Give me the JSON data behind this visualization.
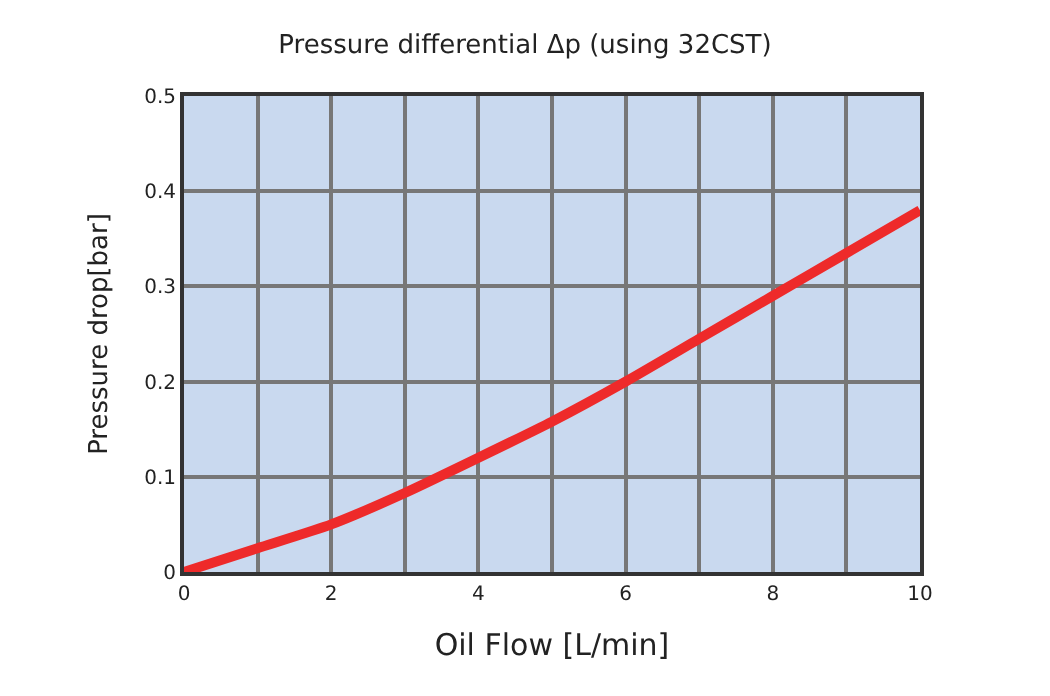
{
  "chart_data": {
    "type": "line",
    "title": "Pressure differential Δp (using 32CST)",
    "xlabel": "Oil Flow [L/min]",
    "ylabel": "Pressure drop[bar]",
    "x": [
      0,
      1,
      2,
      3,
      4,
      5,
      6,
      7,
      8,
      9,
      10
    ],
    "series": [
      {
        "color": "#ee2a2a",
        "values": [
          0.0,
          0.025,
          0.05,
          0.083,
          0.12,
          0.158,
          0.2,
          0.245,
          0.29,
          0.335,
          0.38
        ]
      }
    ],
    "xlim": [
      0,
      10
    ],
    "ylim": [
      0,
      0.5
    ],
    "xticks": [
      0,
      {
        "value": 1,
        "label": null
      },
      2,
      {
        "value": 3,
        "label": null
      },
      4,
      {
        "value": 5,
        "label": null
      },
      6,
      {
        "value": 7,
        "label": null
      },
      8,
      {
        "value": 9,
        "label": null
      },
      10
    ],
    "yticks": [
      0,
      0.1,
      0.2,
      0.3,
      0.4,
      0.5
    ],
    "grid": true,
    "marker": "none",
    "line_style": "solid"
  }
}
